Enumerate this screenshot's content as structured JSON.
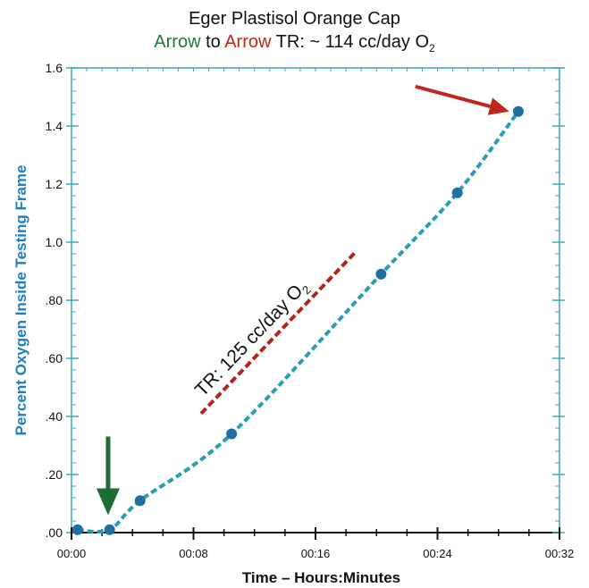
{
  "chart_data": {
    "type": "line",
    "title": "Eger Plastisol Orange Cap",
    "subtitle": {
      "arrow_start": "Arrow",
      "connector": "to",
      "arrow_end": "Arrow",
      "rate_text": "TR: ~ 114  cc/day O",
      "rate_subscript": "2"
    },
    "xlabel": "Time – Hours:Minutes",
    "ylabel": "Percent Oxygen  Inside Testing Frame",
    "xlim": [
      0,
      32
    ],
    "ylim": [
      0,
      1.6
    ],
    "x_ticks": [
      {
        "value": 0,
        "label": "00:00"
      },
      {
        "value": 8,
        "label": "00:08"
      },
      {
        "value": 16,
        "label": "00:16"
      },
      {
        "value": 24,
        "label": "00:24"
      },
      {
        "value": 32,
        "label": "00:32"
      }
    ],
    "y_ticks": [
      {
        "value": 0,
        "label": ".00"
      },
      {
        "value": 0.2,
        "label": ".20"
      },
      {
        "value": 0.4,
        "label": ".40"
      },
      {
        "value": 0.6,
        "label": ".60"
      },
      {
        "value": 0.8,
        "label": ".80"
      },
      {
        "value": 1.0,
        "label": "1.0"
      },
      {
        "value": 1.2,
        "label": "1.2"
      },
      {
        "value": 1.4,
        "label": "1.4"
      },
      {
        "value": 1.6,
        "label": "1.6"
      }
    ],
    "series": [
      {
        "x": [
          0.4,
          2.5,
          4.5,
          10.5,
          20.3,
          25.3,
          29.3
        ],
        "y": [
          0.01,
          0.01,
          0.11,
          0.34,
          0.89,
          1.17,
          1.45
        ],
        "color": "#2a9bb8"
      }
    ],
    "annotation": {
      "text": "TR: 125 cc/day O",
      "subscript": "2",
      "line_start": {
        "x": 8.5,
        "y": 0.41
      },
      "line_end": {
        "x": 18.7,
        "y": 0.97
      },
      "color": "#b3241c"
    },
    "arrows": [
      {
        "name": "start",
        "color": "#1e6e34",
        "points_to": {
          "x": 2.4,
          "y": 0.06
        }
      },
      {
        "name": "end",
        "color": "#c0261e",
        "points_to": {
          "x": 28.7,
          "y": 1.45
        }
      }
    ],
    "grid": false
  }
}
